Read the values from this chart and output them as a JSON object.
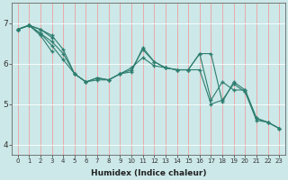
{
  "xlabel": "Humidex (Indice chaleur)",
  "ylabel": "",
  "bg_color": "#cce8e8",
  "line_color": "#2d7d6e",
  "grid_color_v": "#f0a0a0",
  "grid_color_h": "#ffffff",
  "xlim": [
    -0.5,
    23.5
  ],
  "ylim": [
    3.75,
    7.5
  ],
  "yticks": [
    4,
    5,
    6,
    7
  ],
  "xticks": [
    0,
    1,
    2,
    3,
    4,
    5,
    6,
    7,
    8,
    9,
    10,
    11,
    12,
    13,
    14,
    15,
    16,
    17,
    18,
    19,
    20,
    21,
    22,
    23
  ],
  "series": [
    [
      6.85,
      6.95,
      6.85,
      6.65,
      null,
      null,
      null,
      null,
      null,
      null,
      null,
      null,
      null,
      null,
      null,
      null,
      null,
      null,
      null,
      null,
      null,
      null,
      null,
      null
    ],
    [
      6.85,
      6.95,
      6.85,
      6.7,
      6.35,
      5.75,
      5.55,
      5.6,
      5.6,
      5.75,
      5.9,
      6.15,
      5.95,
      5.9,
      5.85,
      5.85,
      5.85,
      5.0,
      5.1,
      5.5,
      5.3,
      4.6,
      4.55,
      4.4
    ],
    [
      6.85,
      6.95,
      6.75,
      6.55,
      6.25,
      5.75,
      5.55,
      5.65,
      5.6,
      5.75,
      5.85,
      6.35,
      6.05,
      5.9,
      5.85,
      5.85,
      6.25,
      6.25,
      5.05,
      5.55,
      5.35,
      4.65,
      4.55,
      4.4
    ],
    [
      6.85,
      6.95,
      6.75,
      6.45,
      6.1,
      5.75,
      5.55,
      5.65,
      5.6,
      5.75,
      5.8,
      6.4,
      6.05,
      5.9,
      5.85,
      5.85,
      6.25,
      5.1,
      5.55,
      5.35,
      5.35,
      4.65,
      4.55,
      4.4
    ],
    [
      6.85,
      6.95,
      6.7,
      6.3,
      null,
      null,
      null,
      null,
      null,
      null,
      null,
      null,
      null,
      null,
      null,
      null,
      null,
      null,
      null,
      null,
      null,
      null,
      null,
      null
    ]
  ]
}
